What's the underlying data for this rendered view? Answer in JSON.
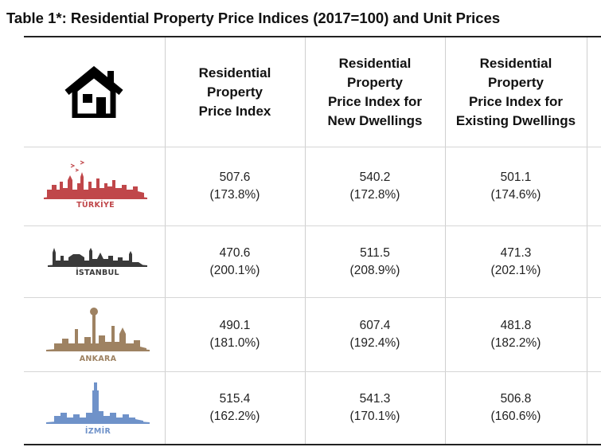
{
  "title": "Table 1*: Residential Property Price Indices (2017=100) and Unit Prices",
  "headers": {
    "col1": [
      "Residential",
      "Property",
      "Price Index"
    ],
    "col2": [
      "Residential",
      "Property",
      "Price Index for",
      "New Dwellings"
    ],
    "col3": [
      "Residential",
      "Property",
      "Price Index for",
      "Existing Dwellings"
    ]
  },
  "rows": [
    {
      "region": "TÜRKİYE",
      "color": "#c0474a",
      "values": [
        [
          "507.6",
          "(173.8%)"
        ],
        [
          "540.2",
          "(172.8%)"
        ],
        [
          "501.1",
          "(174.6%)"
        ]
      ]
    },
    {
      "region": "İSTANBUL",
      "color": "#3a3a3a",
      "values": [
        [
          "470.6",
          "(200.1%)"
        ],
        [
          "511.5",
          "(208.9%)"
        ],
        [
          "471.3",
          "(202.1%)"
        ]
      ]
    },
    {
      "region": "ANKARA",
      "color": "#9e8262",
      "values": [
        [
          "490.1",
          "(181.0%)"
        ],
        [
          "607.4",
          "(192.4%)"
        ],
        [
          "481.8",
          "(182.2%)"
        ]
      ]
    },
    {
      "region": "İZMİR",
      "color": "#6f92c9",
      "values": [
        [
          "515.4",
          "(162.2%)"
        ],
        [
          "541.3",
          "(170.1%)"
        ],
        [
          "506.8",
          "(160.6%)"
        ]
      ]
    }
  ],
  "icons": {
    "header": "house-icon"
  }
}
